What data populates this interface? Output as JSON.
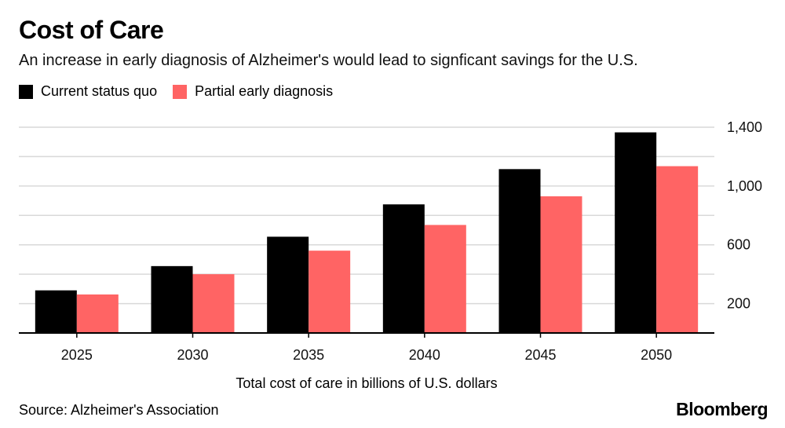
{
  "title": "Cost of Care",
  "subtitle": "An increase in early diagnosis of Alzheimer's would lead to signficant savings for the U.S.",
  "source": "Source: Alzheimer's Association",
  "brand": "Bloomberg",
  "colors": {
    "status_quo": "#000000",
    "early": "#ff6464",
    "grid": "#d9d9d9",
    "axis": "#000000"
  },
  "chart_data": {
    "type": "bar",
    "title": "Cost of Care",
    "xlabel": "Total cost of care in billions of U.S. dollars",
    "ylabel": "",
    "categories": [
      "2025",
      "2030",
      "2035",
      "2040",
      "2045",
      "2050"
    ],
    "series": [
      {
        "name": "Current status quo",
        "values": [
          290,
          455,
          655,
          875,
          1115,
          1365
        ]
      },
      {
        "name": "Partial early diagnosis",
        "values": [
          262,
          400,
          560,
          735,
          930,
          1135
        ]
      }
    ],
    "yticks": [
      200,
      600,
      1000,
      1400
    ],
    "ylim": [
      0,
      1400
    ],
    "grid": true,
    "legend": "top-left"
  }
}
